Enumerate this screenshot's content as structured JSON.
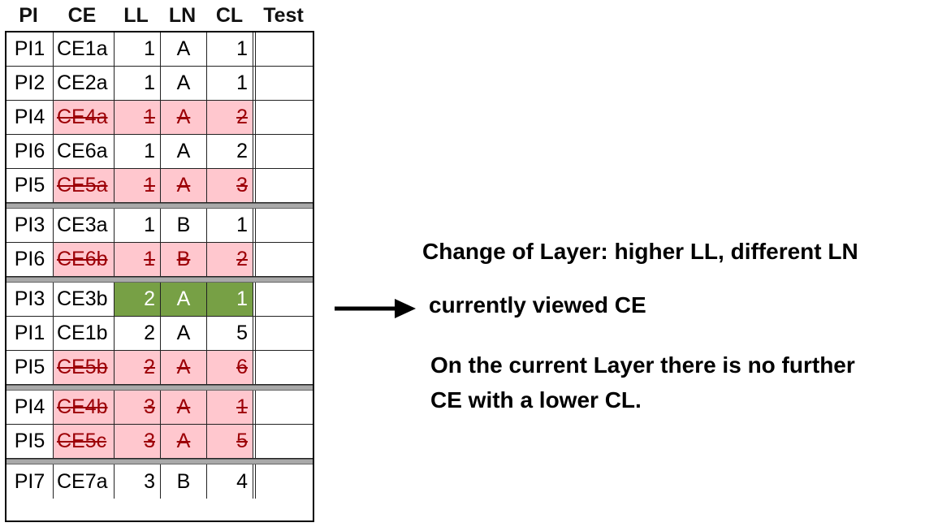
{
  "columns": [
    "PI",
    "CE",
    "LL",
    "LN",
    "CL",
    "Test"
  ],
  "rows": [
    {
      "pi": "PI1",
      "ce": "CE1a",
      "ll": "1",
      "ln": "A",
      "cl": "1",
      "test": "",
      "state": "normal"
    },
    {
      "pi": "PI2",
      "ce": "CE2a",
      "ll": "1",
      "ln": "A",
      "cl": "1",
      "test": "",
      "state": "normal"
    },
    {
      "pi": "PI4",
      "ce": "CE4a",
      "ll": "1",
      "ln": "A",
      "cl": "2",
      "test": "",
      "state": "struck"
    },
    {
      "pi": "PI6",
      "ce": "CE6a",
      "ll": "1",
      "ln": "A",
      "cl": "2",
      "test": "",
      "state": "normal"
    },
    {
      "pi": "PI5",
      "ce": "CE5a",
      "ll": "1",
      "ln": "A",
      "cl": "3",
      "test": "",
      "state": "struck",
      "separator_after": true
    },
    {
      "pi": "PI3",
      "ce": "CE3a",
      "ll": "1",
      "ln": "B",
      "cl": "1",
      "test": "",
      "state": "normal"
    },
    {
      "pi": "PI6",
      "ce": "CE6b",
      "ll": "1",
      "ln": "B",
      "cl": "2",
      "test": "",
      "state": "struck",
      "separator_after": true
    },
    {
      "pi": "PI3",
      "ce": "CE3b",
      "ll": "2",
      "ln": "A",
      "cl": "1",
      "test": "",
      "state": "current"
    },
    {
      "pi": "PI1",
      "ce": "CE1b",
      "ll": "2",
      "ln": "A",
      "cl": "5",
      "test": "",
      "state": "normal"
    },
    {
      "pi": "PI5",
      "ce": "CE5b",
      "ll": "2",
      "ln": "A",
      "cl": "6",
      "test": "",
      "state": "struck",
      "separator_after": true
    },
    {
      "pi": "PI4",
      "ce": "CE4b",
      "ll": "3",
      "ln": "A",
      "cl": "1",
      "test": "",
      "state": "struck"
    },
    {
      "pi": "PI5",
      "ce": "CE5c",
      "ll": "3",
      "ln": "A",
      "cl": "5",
      "test": "",
      "state": "struck",
      "separator_after": true
    },
    {
      "pi": "PI7",
      "ce": "CE7a",
      "ll": "3",
      "ln": "B",
      "cl": "4",
      "test": "",
      "state": "normal"
    }
  ],
  "annotations": {
    "layer_change": "Change of Layer: higher LL, different LN",
    "current_ce": "currently viewed CE",
    "no_lower_line1": "On the current Layer there is no further",
    "no_lower_line2": "CE with a lower CL."
  },
  "colors": {
    "struck_fill": "#ffc7ce",
    "struck_text": "#9c0006",
    "current_fill": "#77a045",
    "separator": "#a9a9a9"
  }
}
